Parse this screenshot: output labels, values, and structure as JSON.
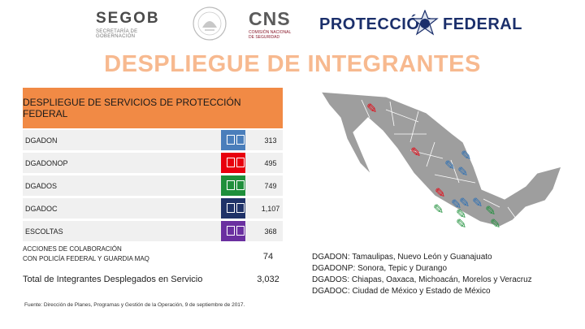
{
  "header": {
    "segob": "SEGOB",
    "segob_sub": "SECRETARÍA DE GOBERNACIÓN",
    "cns": "CNS",
    "cns_sub_1": "COMISIÓN NACIONAL",
    "cns_sub_2": "DE SEGURIDAD",
    "pf_word_1": "PROTECCIÓN",
    "pf_word_2": "FEDERAL"
  },
  "title": "DESPLIEGUE DE INTEGRANTES",
  "table": {
    "header": "DESPLIEGUE DE SERVICIOS DE PROTECCIÓN FEDERAL",
    "rows": [
      {
        "label": "DGADON",
        "value": "313",
        "color": "#4a7ebb"
      },
      {
        "label": "DGADONOP",
        "value": "495",
        "color": "#e8000e"
      },
      {
        "label": "DGADOS",
        "value": "749",
        "color": "#1f8f3b"
      },
      {
        "label": "DGADOC",
        "value": "1,107",
        "color": "#1f3268"
      },
      {
        "label": "ESCOLTAS",
        "value": "368",
        "color": "#6a2fa0"
      }
    ],
    "collab_line_1": "ACCIONES DE COLABORACIÓN",
    "collab_line_2": "CON POLICÍA FEDERAL Y GUARDIA MAQ",
    "collab_value": "74",
    "total_label": "Total de Integrantes Desplegados en Servicio",
    "total_value": "3,032"
  },
  "source": "Fuente: Dirección de Planes, Programas y Gestión de la Operación, 9 de septiembre de 2017.",
  "legend": [
    "DGADON: Tamaulipas, Nuevo León y Guanajuato",
    "DGADONP: Sonora, Tepic y Durango",
    "DGADOS: Chiapas, Oaxaca, Michoacán, Morelos y Veracruz",
    "DGADOC: Ciudad de México y Estado de México"
  ],
  "colors": {
    "title": "#f7b98f",
    "header_bg": "#f18a45",
    "map_land": "#9e9e9e",
    "map_border": "#ffffff",
    "pin_red": "#e8000e",
    "pin_blue": "#2b6fb5",
    "pin_green": "#1f8f3b"
  }
}
